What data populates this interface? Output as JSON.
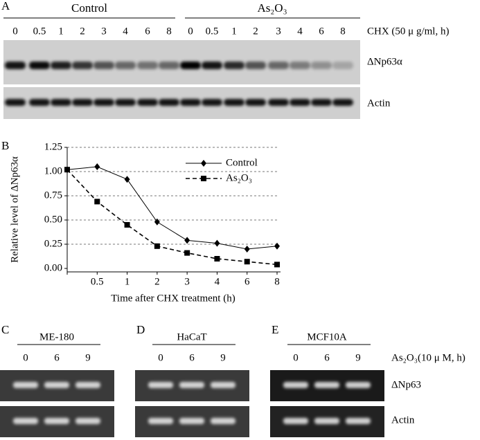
{
  "panel_a": {
    "letter": "A",
    "groups": [
      "Control",
      "As₂O₃"
    ],
    "lanes": [
      "0",
      "0.5",
      "1",
      "2",
      "3",
      "4",
      "6",
      "8"
    ],
    "treatment": "CHX (50 μ g/ml, h)",
    "rows": [
      "ΔNp63α",
      "Actin"
    ]
  },
  "chart_data": {
    "type": "line",
    "letter": "B",
    "categories": [
      null,
      "0.5",
      "1",
      "2",
      "3",
      "4",
      "6",
      "8"
    ],
    "series": [
      {
        "name": "Control",
        "color": "#000000",
        "style": "solid",
        "marker": "diamond",
        "values": [
          1.02,
          1.05,
          0.92,
          0.48,
          0.29,
          0.26,
          0.2,
          0.23
        ]
      },
      {
        "name": "As₂O₃",
        "color": "#000000",
        "style": "dashed",
        "marker": "square",
        "values": [
          1.02,
          0.69,
          0.45,
          0.23,
          0.16,
          0.1,
          0.07,
          0.04
        ]
      }
    ],
    "ylim": [
      0,
      1.25
    ],
    "yticks": [
      {
        "value": 0,
        "label": "0.00"
      },
      {
        "value": 0.25,
        "label": "0.25"
      },
      {
        "value": 0.5,
        "label": "0.50"
      },
      {
        "value": 0.75,
        "label": "0.75"
      },
      {
        "value": 1,
        "label": "1.00"
      },
      {
        "value": 1.25,
        "label": "1.25"
      }
    ],
    "ylabel": "Relative level of ΔNp63α",
    "xlabel": "Time after CHX treatment (h)",
    "grid": true,
    "legend": "upper right"
  },
  "panels_cde": {
    "gels": [
      {
        "letter": "C",
        "cell_line": "ME-180",
        "lanes": [
          "0",
          "6",
          "9"
        ]
      },
      {
        "letter": "D",
        "cell_line": "HaCaT",
        "lanes": [
          "0",
          "6",
          "9"
        ]
      },
      {
        "letter": "E",
        "cell_line": "MCF10A",
        "lanes": [
          "0",
          "6",
          "9"
        ]
      }
    ],
    "treatment": "As₂O₃(10 μ M, h)",
    "rows": [
      "ΔNp63",
      "Actin"
    ]
  }
}
